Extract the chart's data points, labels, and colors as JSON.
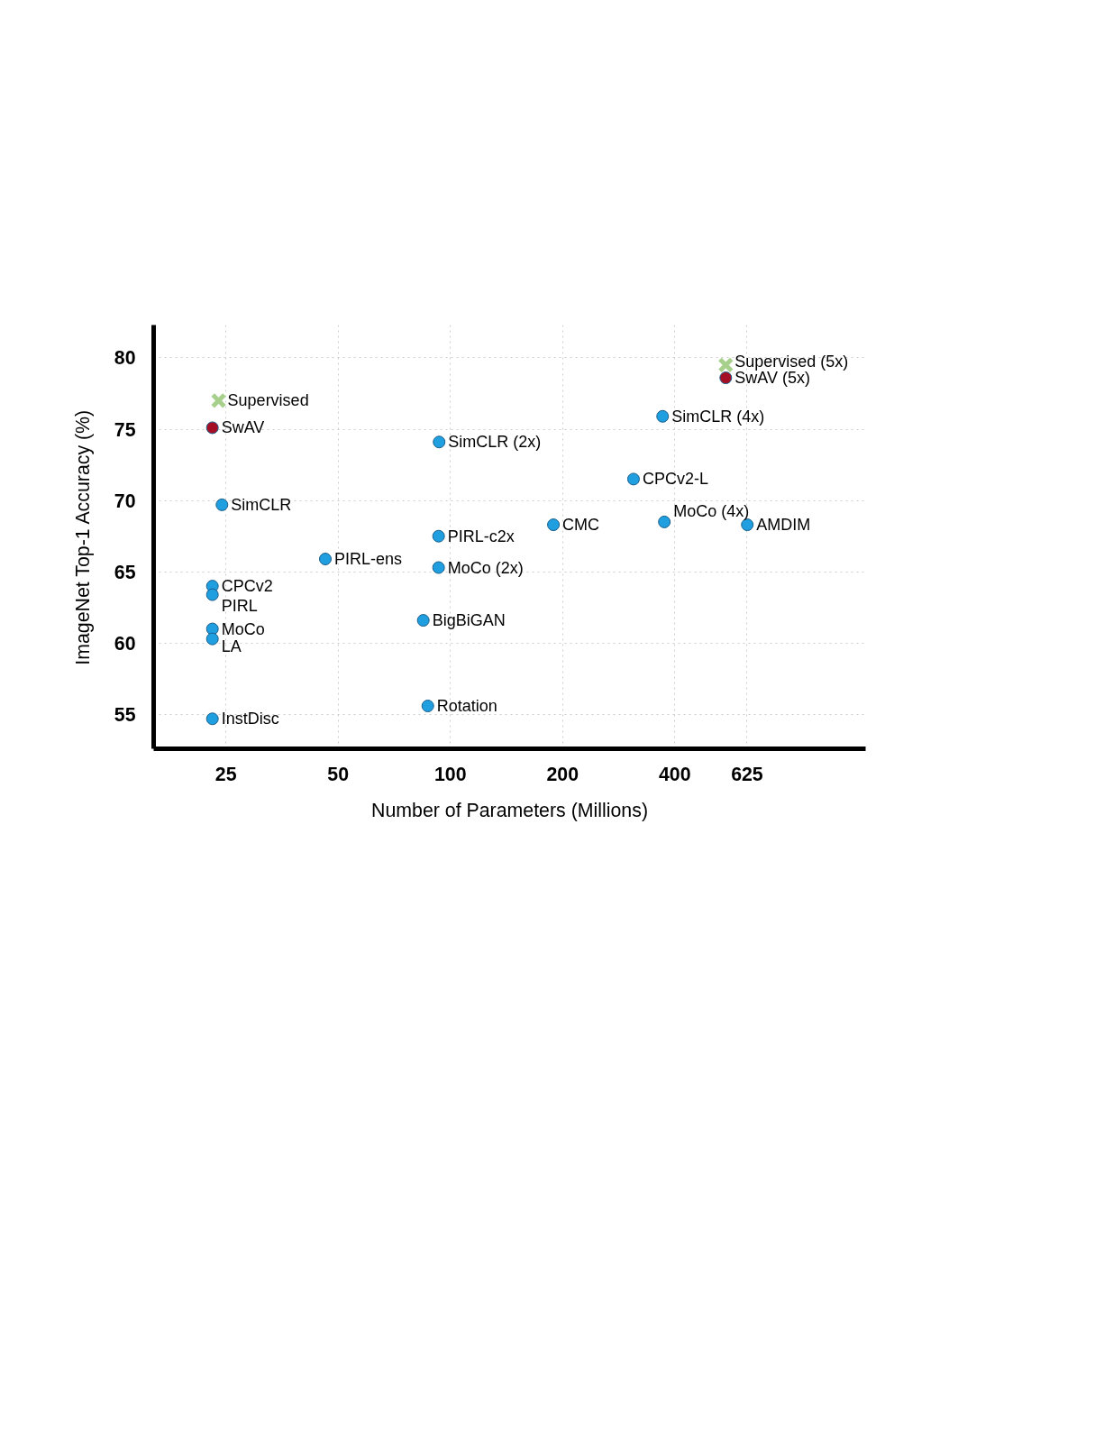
{
  "chart_data": {
    "type": "scatter",
    "xlabel": "Number of Parameters (Millions)",
    "ylabel": "ImageNet Top-1 Accuracy (%)",
    "log": "x",
    "xlim": [
      16,
      1300
    ],
    "ylim": [
      52.6,
      82.3
    ],
    "xticks": [
      25,
      50,
      100,
      200,
      400,
      625
    ],
    "yticks": [
      55,
      60,
      65,
      70,
      75,
      80
    ],
    "grid": true,
    "series": [
      {
        "color": "#1f9ee0",
        "marker": "circle",
        "x": [
          24.4,
          23,
          23,
          23,
          23,
          23,
          46.2,
          93.3,
          93,
          93,
          84.6,
          87,
          189,
          310,
          371,
          375,
          626
        ],
        "values": [
          69.7,
          64.0,
          63.4,
          61.0,
          60.3,
          54.7,
          65.9,
          74.1,
          67.5,
          65.3,
          61.6,
          55.6,
          68.3,
          71.5,
          75.9,
          68.5,
          68.3
        ]
      },
      {
        "color": "#a50f25",
        "marker": "circle",
        "x": [
          23,
          548
        ],
        "values": [
          75.1,
          78.6
        ]
      },
      {
        "color": "#a8d08d",
        "marker": "cross",
        "x": [
          23.9,
          548
        ],
        "values": [
          77.0,
          79.5
        ]
      }
    ],
    "annotations": [
      {
        "text": "SimCLR",
        "x": 24.4,
        "y": 69.7
      },
      {
        "text": "CPCv2",
        "x": 23,
        "y": 64.0
      },
      {
        "text": "PIRL",
        "x": 23,
        "y": 63.4
      },
      {
        "text": "MoCo",
        "x": 23,
        "y": 61.0
      },
      {
        "text": "LA",
        "x": 23,
        "y": 60.3
      },
      {
        "text": "InstDisc",
        "x": 23,
        "y": 54.7
      },
      {
        "text": "PIRL-ens",
        "x": 46.2,
        "y": 65.9
      },
      {
        "text": "SimCLR (2x)",
        "x": 93.3,
        "y": 74.1
      },
      {
        "text": "PIRL-c2x",
        "x": 93,
        "y": 67.5
      },
      {
        "text": "MoCo (2x)",
        "x": 93,
        "y": 65.3
      },
      {
        "text": "BigBiGAN",
        "x": 84.6,
        "y": 61.6
      },
      {
        "text": "Rotation",
        "x": 87,
        "y": 55.6
      },
      {
        "text": "CMC",
        "x": 189,
        "y": 68.3
      },
      {
        "text": "CPCv2-L",
        "x": 310,
        "y": 71.5
      },
      {
        "text": "SimCLR (4x)",
        "x": 371,
        "y": 75.9
      },
      {
        "text": "MoCo (4x)",
        "x": 375,
        "y": 68.5
      },
      {
        "text": "AMDIM",
        "x": 626,
        "y": 68.3
      },
      {
        "text": "SwAV",
        "x": 23,
        "y": 75.1
      },
      {
        "text": "SwAV (5x)",
        "x": 548,
        "y": 78.6
      },
      {
        "text": "Supervised",
        "x": 23.9,
        "y": 77.0
      },
      {
        "text": "Supervised (5x)",
        "x": 548,
        "y": 79.5
      }
    ]
  }
}
